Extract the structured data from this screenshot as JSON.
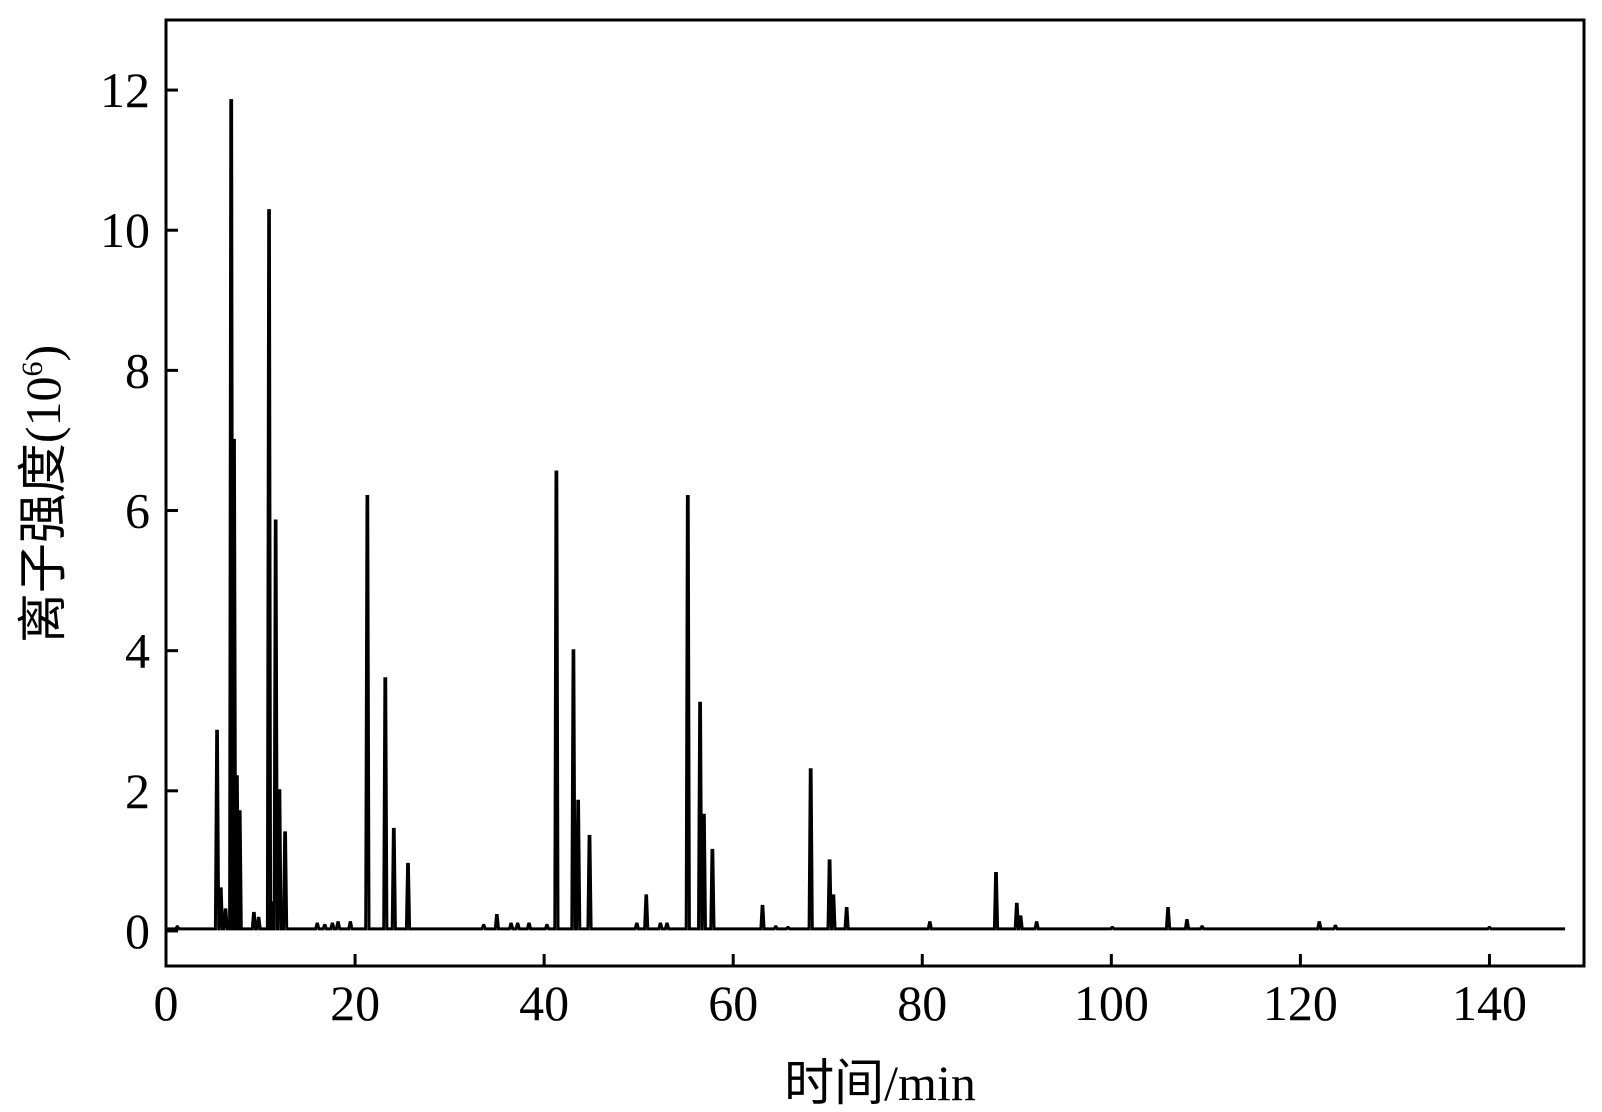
{
  "chart_data": {
    "type": "line",
    "xlabel": "时间/min",
    "ylabel_main": "离子强度(10",
    "ylabel_sup": "6",
    "ylabel_close": ")",
    "xlim": [
      0,
      150
    ],
    "ylim": [
      -0.5,
      13
    ],
    "x_ticks": [
      0,
      20,
      40,
      60,
      80,
      100,
      120,
      140
    ],
    "y_ticks": [
      0,
      2,
      4,
      6,
      8,
      10,
      12
    ],
    "grid": false,
    "legend": "none",
    "series": [
      {
        "line_color": "#000000",
        "baseline": 0.03,
        "x_end": 148,
        "peaks": [
          [
            1.2,
            0.06
          ],
          [
            5.4,
            2.85
          ],
          [
            5.8,
            0.6
          ],
          [
            6.3,
            0.3
          ],
          [
            6.9,
            11.85
          ],
          [
            7.2,
            7.0
          ],
          [
            7.5,
            2.2
          ],
          [
            7.8,
            1.7
          ],
          [
            9.3,
            0.25
          ],
          [
            9.8,
            0.18
          ],
          [
            10.9,
            10.28
          ],
          [
            11.1,
            0.4
          ],
          [
            11.6,
            5.85
          ],
          [
            12.0,
            2.0
          ],
          [
            12.6,
            1.4
          ],
          [
            16.0,
            0.1
          ],
          [
            16.8,
            0.08
          ],
          [
            17.6,
            0.1
          ],
          [
            18.2,
            0.12
          ],
          [
            19.5,
            0.12
          ],
          [
            21.3,
            6.2
          ],
          [
            23.2,
            3.6
          ],
          [
            24.1,
            1.45
          ],
          [
            25.6,
            0.95
          ],
          [
            33.6,
            0.08
          ],
          [
            35.0,
            0.22
          ],
          [
            36.5,
            0.1
          ],
          [
            37.2,
            0.1
          ],
          [
            38.4,
            0.1
          ],
          [
            40.3,
            0.08
          ],
          [
            41.3,
            6.55
          ],
          [
            43.1,
            4.0
          ],
          [
            43.6,
            1.85
          ],
          [
            44.8,
            1.35
          ],
          [
            49.8,
            0.1
          ],
          [
            50.8,
            0.5
          ],
          [
            52.3,
            0.1
          ],
          [
            53.0,
            0.1
          ],
          [
            55.2,
            6.2
          ],
          [
            56.5,
            3.25
          ],
          [
            56.9,
            1.65
          ],
          [
            57.8,
            1.15
          ],
          [
            63.1,
            0.35
          ],
          [
            64.5,
            0.06
          ],
          [
            65.8,
            0.05
          ],
          [
            68.2,
            2.3
          ],
          [
            70.2,
            1.0
          ],
          [
            70.6,
            0.5
          ],
          [
            72.0,
            0.32
          ],
          [
            80.8,
            0.12
          ],
          [
            87.8,
            0.82
          ],
          [
            90.0,
            0.38
          ],
          [
            90.4,
            0.2
          ],
          [
            92.1,
            0.12
          ],
          [
            100.1,
            0.05
          ],
          [
            106.0,
            0.32
          ],
          [
            108.0,
            0.15
          ],
          [
            109.6,
            0.06
          ],
          [
            122.0,
            0.12
          ],
          [
            123.7,
            0.07
          ],
          [
            140.0,
            0.05
          ]
        ]
      }
    ]
  }
}
